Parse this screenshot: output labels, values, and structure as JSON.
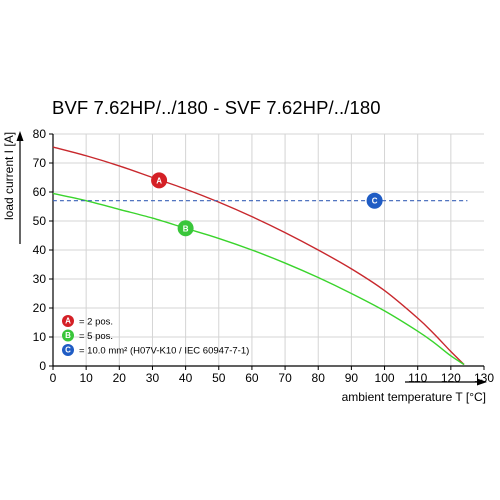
{
  "chart_data": {
    "type": "line",
    "title": "BVF 7.62HP/../180 - SVF 7.62HP/../180",
    "xlabel": "ambient temperature T [°C]",
    "ylabel": "load current I [A]",
    "xlim": [
      0,
      130
    ],
    "ylim": [
      0,
      80
    ],
    "x_ticks": [
      "0",
      "10",
      "20",
      "30",
      "40",
      "50",
      "60",
      "70",
      "80",
      "90",
      "100",
      "110",
      "120",
      "130"
    ],
    "y_ticks": [
      "0",
      "10",
      "20",
      "30",
      "40",
      "50",
      "60",
      "70",
      "80"
    ],
    "grid": true,
    "series": [
      {
        "marker": "A",
        "color": "#c8282d",
        "x": [
          0,
          10,
          20,
          30,
          40,
          50,
          60,
          70,
          80,
          90,
          100,
          110,
          115,
          120,
          124
        ],
        "y": [
          75.5,
          72.5,
          69,
          65,
          61,
          56.5,
          51.5,
          46,
          40,
          33.5,
          26,
          16.5,
          11,
          5,
          0.5
        ]
      },
      {
        "marker": "B",
        "color": "#3ad42c",
        "x": [
          0,
          10,
          20,
          30,
          40,
          50,
          60,
          70,
          80,
          90,
          100,
          110,
          115,
          120,
          124
        ],
        "y": [
          59.5,
          57,
          54,
          51,
          47.5,
          44,
          40,
          35.5,
          30.5,
          25,
          19,
          12,
          8,
          3.5,
          0.5
        ]
      },
      {
        "marker": "C",
        "color": "#3a62b8",
        "dashed": true,
        "x": [
          0,
          125
        ],
        "y": [
          57,
          57
        ]
      }
    ],
    "markers": [
      {
        "label": "A",
        "x": 32,
        "y": 64,
        "color": "#d42026"
      },
      {
        "label": "B",
        "x": 40,
        "y": 47.5,
        "color": "#39c63a"
      },
      {
        "label": "C",
        "x": 97,
        "y": 57,
        "color": "#1f5cc4"
      }
    ],
    "legend": [
      {
        "marker": "A",
        "text": "= 2 pos.",
        "color": "#d42026"
      },
      {
        "marker": "B",
        "text": "= 5 pos.",
        "color": "#39c63a"
      },
      {
        "marker": "C",
        "text": "= 10.0 mm² (H07V-K10 / IEC 60947-7-1)",
        "color": "#1f5cc4"
      }
    ],
    "legend_position": "bottom-left"
  }
}
